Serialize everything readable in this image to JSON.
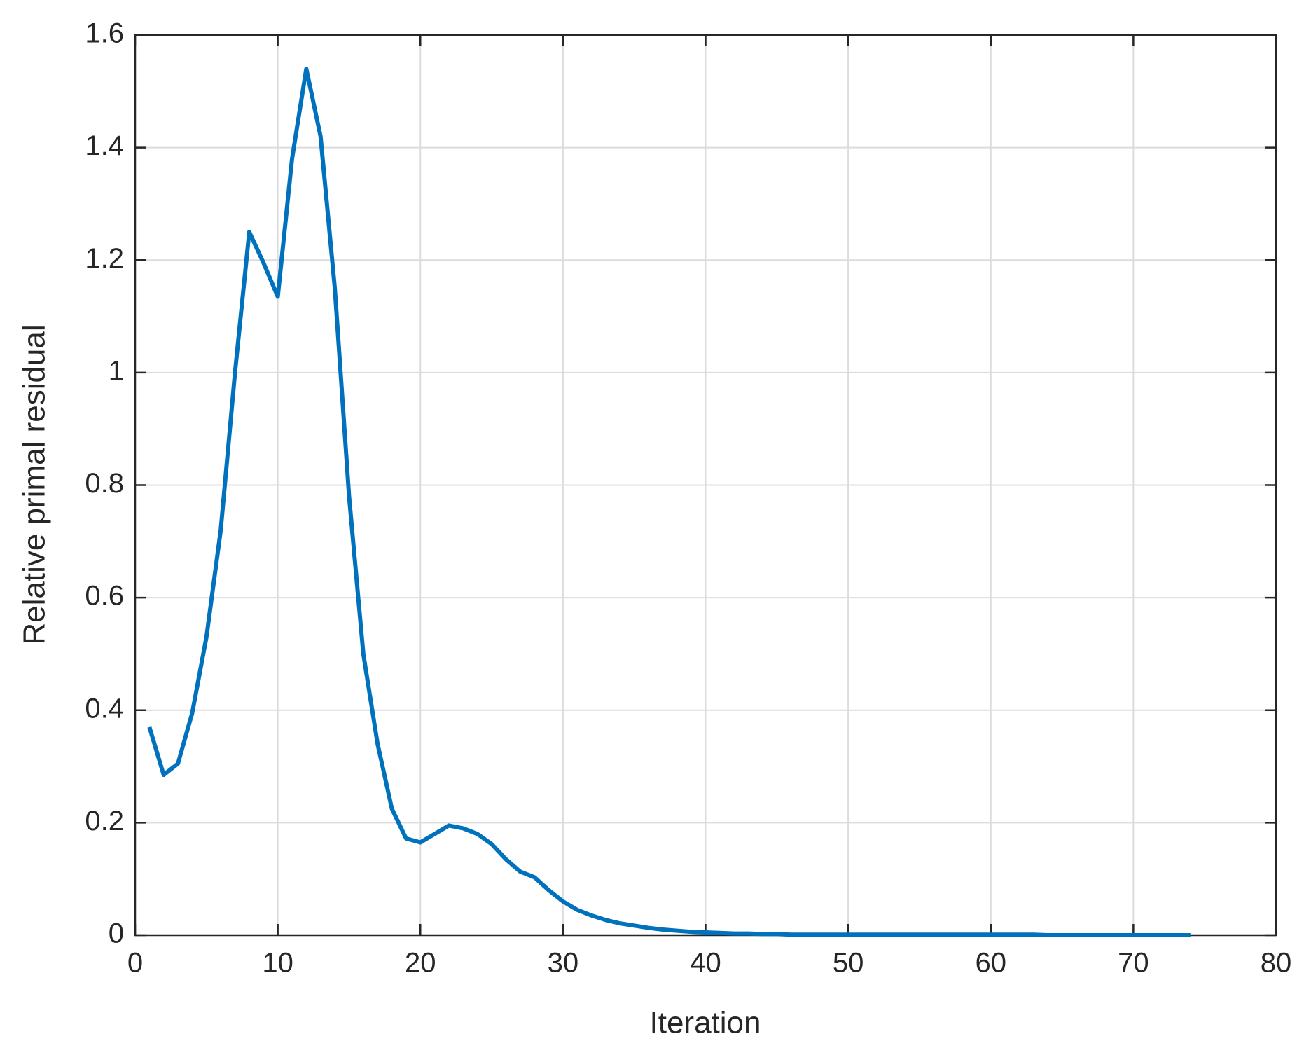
{
  "chart_data": {
    "type": "line",
    "xlabel": "Iteration",
    "ylabel": "Relative primal residual",
    "xlim": [
      0,
      80
    ],
    "ylim": [
      0,
      1.6
    ],
    "xticks": [
      0,
      10,
      20,
      30,
      40,
      50,
      60,
      70,
      80
    ],
    "yticks": [
      0,
      0.2,
      0.4,
      0.6,
      0.8,
      1,
      1.2,
      1.4,
      1.6
    ],
    "grid": true,
    "x": [
      1,
      2,
      3,
      4,
      5,
      6,
      7,
      8,
      9,
      10,
      11,
      12,
      13,
      14,
      15,
      16,
      17,
      18,
      19,
      20,
      21,
      22,
      23,
      24,
      25,
      26,
      27,
      28,
      29,
      30,
      31,
      32,
      33,
      34,
      35,
      36,
      37,
      38,
      39,
      40,
      41,
      42,
      43,
      44,
      45,
      46,
      47,
      48,
      49,
      50,
      51,
      52,
      53,
      54,
      55,
      56,
      57,
      58,
      59,
      60,
      61,
      62,
      63,
      64,
      65,
      66,
      67,
      68,
      69,
      70,
      71,
      72,
      73,
      74
    ],
    "series": [
      {
        "color": "#0072bd",
        "values": [
          0.37,
          0.285,
          0.305,
          0.395,
          0.53,
          0.72,
          1.0,
          1.25,
          1.195,
          1.135,
          1.38,
          1.54,
          1.42,
          1.15,
          0.78,
          0.5,
          0.34,
          0.225,
          0.172,
          0.165,
          0.18,
          0.195,
          0.19,
          0.18,
          0.162,
          0.135,
          0.113,
          0.103,
          0.08,
          0.06,
          0.045,
          0.035,
          0.027,
          0.021,
          0.017,
          0.013,
          0.01,
          0.008,
          0.006,
          0.005,
          0.004,
          0.003,
          0.003,
          0.002,
          0.002,
          0.001,
          0.001,
          0.001,
          0.001,
          0.001,
          0.001,
          0.001,
          0.001,
          0.001,
          0.001,
          0.001,
          0.001,
          0.001,
          0.001,
          0.001,
          0.001,
          0.001,
          0.001,
          0,
          0,
          0,
          0,
          0,
          0,
          0,
          0,
          0,
          0,
          0
        ]
      }
    ]
  }
}
